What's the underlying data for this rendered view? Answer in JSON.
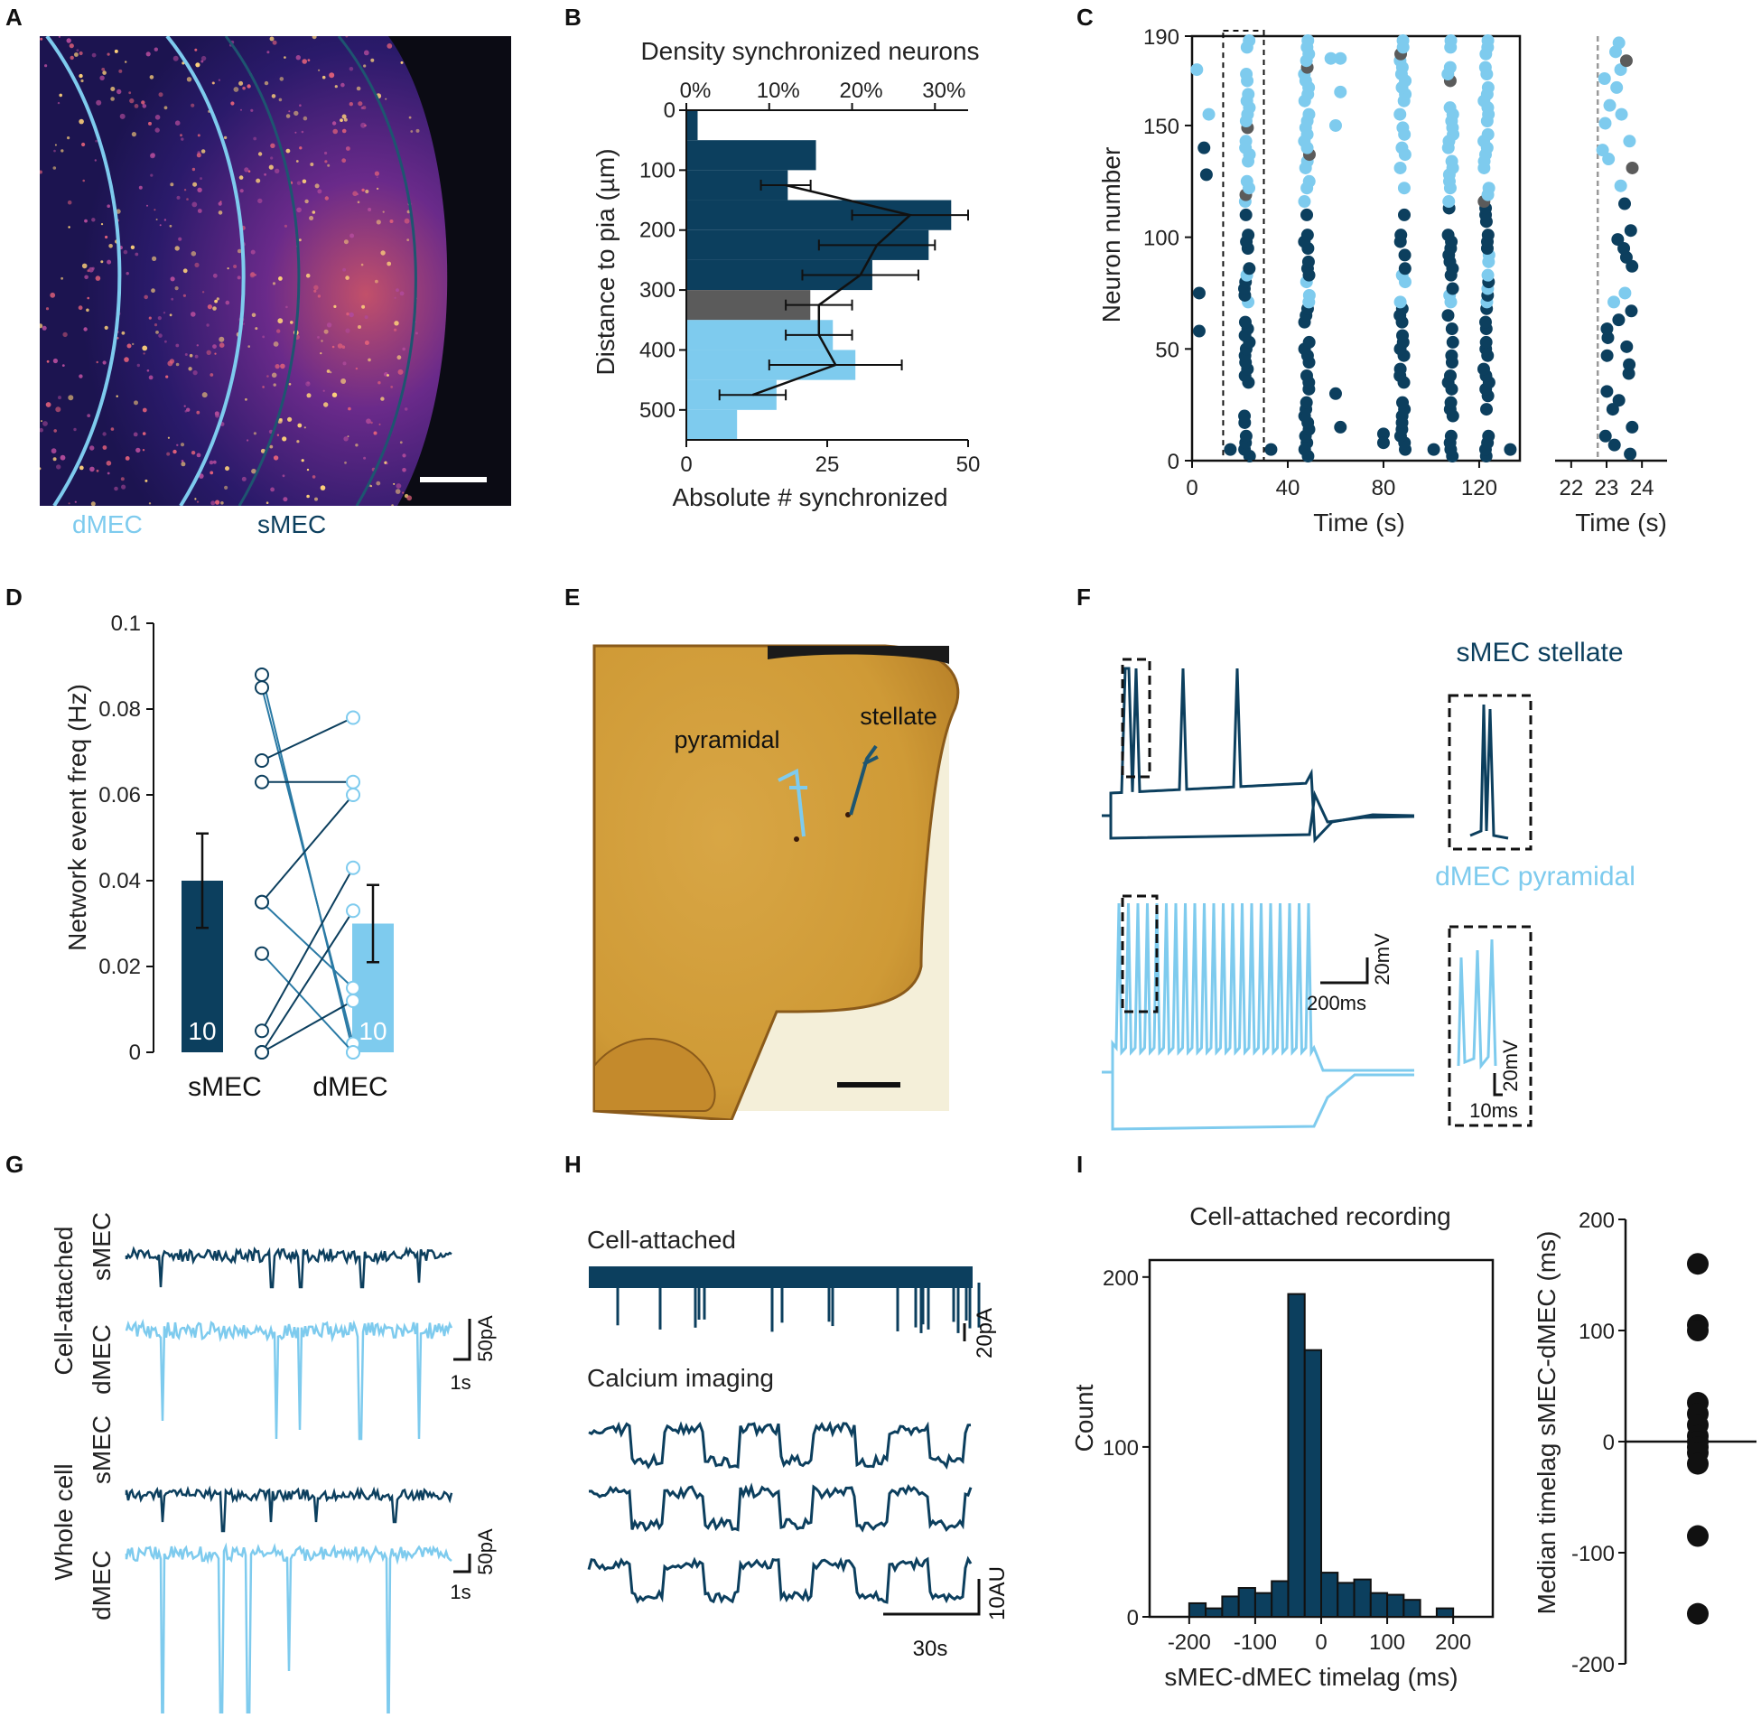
{
  "colors": {
    "smec": "#0c3f5e",
    "dmec": "#7ecbee",
    "grey": "#5b5b5b",
    "black": "#111111",
    "yellow": "#d9a63a"
  },
  "panels": {
    "A": "A",
    "B": "B",
    "C": "C",
    "D": "D",
    "E": "E",
    "F": "F",
    "G": "G",
    "H": "H",
    "I": "I"
  },
  "panelA": {
    "dmec_label": "dMEC",
    "smec_label": "sMEC",
    "image": "fluorescence-micrograph"
  },
  "panelB": {
    "chart_data": {
      "type": "bar",
      "orientation": "horizontal",
      "title": "Density synchronized neurons",
      "xlabel": "Absolute # synchronized",
      "ylabel": "Distance to pia (µm)",
      "x_ticks": [
        "0",
        "25",
        "50"
      ],
      "top_ticks": [
        "0%",
        "10%",
        "20%",
        "30%"
      ],
      "y_ticks": [
        "0",
        "100",
        "200",
        "300",
        "400",
        "500"
      ],
      "xlim": [
        0,
        50
      ],
      "ylim": [
        0,
        550
      ],
      "bins": [
        {
          "from": 0,
          "to": 50,
          "value": 2,
          "group": "sMEC"
        },
        {
          "from": 50,
          "to": 100,
          "value": 23,
          "group": "sMEC"
        },
        {
          "from": 100,
          "to": 150,
          "value": 18,
          "group": "sMEC"
        },
        {
          "from": 150,
          "to": 200,
          "value": 47,
          "group": "sMEC"
        },
        {
          "from": 200,
          "to": 250,
          "value": 43,
          "group": "sMEC"
        },
        {
          "from": 250,
          "to": 300,
          "value": 33,
          "group": "sMEC"
        },
        {
          "from": 300,
          "to": 350,
          "value": 22,
          "group": "boundary"
        },
        {
          "from": 350,
          "to": 400,
          "value": 26,
          "group": "dMEC"
        },
        {
          "from": 400,
          "to": 450,
          "value": 30,
          "group": "dMEC"
        },
        {
          "from": 450,
          "to": 500,
          "value": 16,
          "group": "dMEC"
        },
        {
          "from": 500,
          "to": 550,
          "value": 9,
          "group": "dMEC"
        }
      ],
      "density_line": [
        {
          "depth": 125,
          "pct": 12,
          "err": 3
        },
        {
          "depth": 175,
          "pct": 27,
          "err": 7
        },
        {
          "depth": 225,
          "pct": 23,
          "err": 7
        },
        {
          "depth": 275,
          "pct": 21,
          "err": 7
        },
        {
          "depth": 325,
          "pct": 16,
          "err": 4
        },
        {
          "depth": 375,
          "pct": 16,
          "err": 4
        },
        {
          "depth": 425,
          "pct": 18,
          "err": 8
        },
        {
          "depth": 475,
          "pct": 8,
          "err": 4
        }
      ]
    }
  },
  "panelC": {
    "chart_data": {
      "type": "scatter",
      "ylabel": "Neuron number",
      "xlabel": "Time (s)",
      "y_ticks": [
        "0",
        "50",
        "100",
        "150",
        "190"
      ],
      "x_ticks": [
        "0",
        "40",
        "80",
        "120"
      ],
      "xlim": [
        0,
        137
      ],
      "ylim": [
        0,
        190
      ],
      "event_times": [
        23,
        48,
        88,
        108,
        123
      ],
      "extra_times": [
        60,
        62
      ],
      "inset": {
        "xlabel": "Time (s)",
        "x_ticks": [
          "22",
          "23",
          "24"
        ],
        "xlim": [
          21.8,
          24.2
        ],
        "onset": 22.75
      }
    }
  },
  "panelD": {
    "chart_data": {
      "type": "bar",
      "ylabel": "Network event freq (Hz)",
      "y_ticks": [
        "0",
        "0.02",
        "0.04",
        "0.06",
        "0.08",
        "0.1"
      ],
      "ylim": [
        0,
        0.1
      ],
      "categories": [
        "sMEC",
        "dMEC"
      ],
      "values": [
        0.04,
        0.03
      ],
      "errors": [
        0.011,
        0.009
      ],
      "n": [
        "10",
        "10"
      ],
      "pairs": [
        [
          0.088,
          0.0
        ],
        [
          0.085,
          0.002
        ],
        [
          0.068,
          0.078
        ],
        [
          0.063,
          0.063
        ],
        [
          0.035,
          0.06
        ],
        [
          0.035,
          0.015
        ],
        [
          0.023,
          0.0
        ],
        [
          0.005,
          0.043
        ],
        [
          0.0,
          0.033
        ],
        [
          0.0,
          0.012
        ]
      ]
    }
  },
  "panelE": {
    "pyramidal": "pyramidal",
    "stellate": "stellate",
    "image": "brightfield-slice"
  },
  "panelF": {
    "smec_title": "sMEC stellate",
    "dmec_title": "dMEC pyramidal",
    "scale_v": "20mV",
    "scale_t": "200ms",
    "inset_v": "20mV",
    "inset_t": "10ms"
  },
  "panelG": {
    "cell_attached": "Cell-attached",
    "whole_cell": "Whole cell",
    "smec": "sMEC",
    "dmec": "dMEC",
    "scale_pa": "50pA",
    "scale_s": "1s"
  },
  "panelH": {
    "cell_attached": "Cell-attached",
    "calcium": "Calcium imaging",
    "scale_pa": "20pA",
    "scale_au": "10AU",
    "scale_s": "30s"
  },
  "panelI": {
    "chart_data": {
      "type": "bar",
      "title": "Cell-attached recording",
      "xlabel": "sMEC-dMEC timelag (ms)",
      "ylabel": "Count",
      "x_ticks": [
        "-200",
        "-100",
        "0",
        "100",
        "200"
      ],
      "y_ticks": [
        "0",
        "100",
        "200"
      ],
      "xlim": [
        -260,
        260
      ],
      "ylim": [
        0,
        210
      ],
      "bin_edges": [
        -225,
        -200,
        -175,
        -150,
        -125,
        -100,
        -75,
        -50,
        -25,
        0,
        25,
        50,
        75,
        100,
        125,
        150,
        175,
        200,
        225,
        250
      ],
      "counts": [
        0,
        8,
        5,
        12,
        17,
        14,
        21,
        190,
        157,
        26,
        20,
        22,
        14,
        13,
        10,
        0,
        5,
        0,
        0
      ]
    },
    "scatter": {
      "ylabel": "Median timelag sMEC-dMEC (ms)",
      "y_ticks": [
        "200",
        "100",
        "0",
        "-100",
        "-200"
      ],
      "ylim": [
        -200,
        200
      ],
      "values": [
        160,
        105,
        100,
        35,
        25,
        15,
        5,
        0,
        -5,
        -10,
        -20,
        -85,
        -155
      ]
    }
  }
}
